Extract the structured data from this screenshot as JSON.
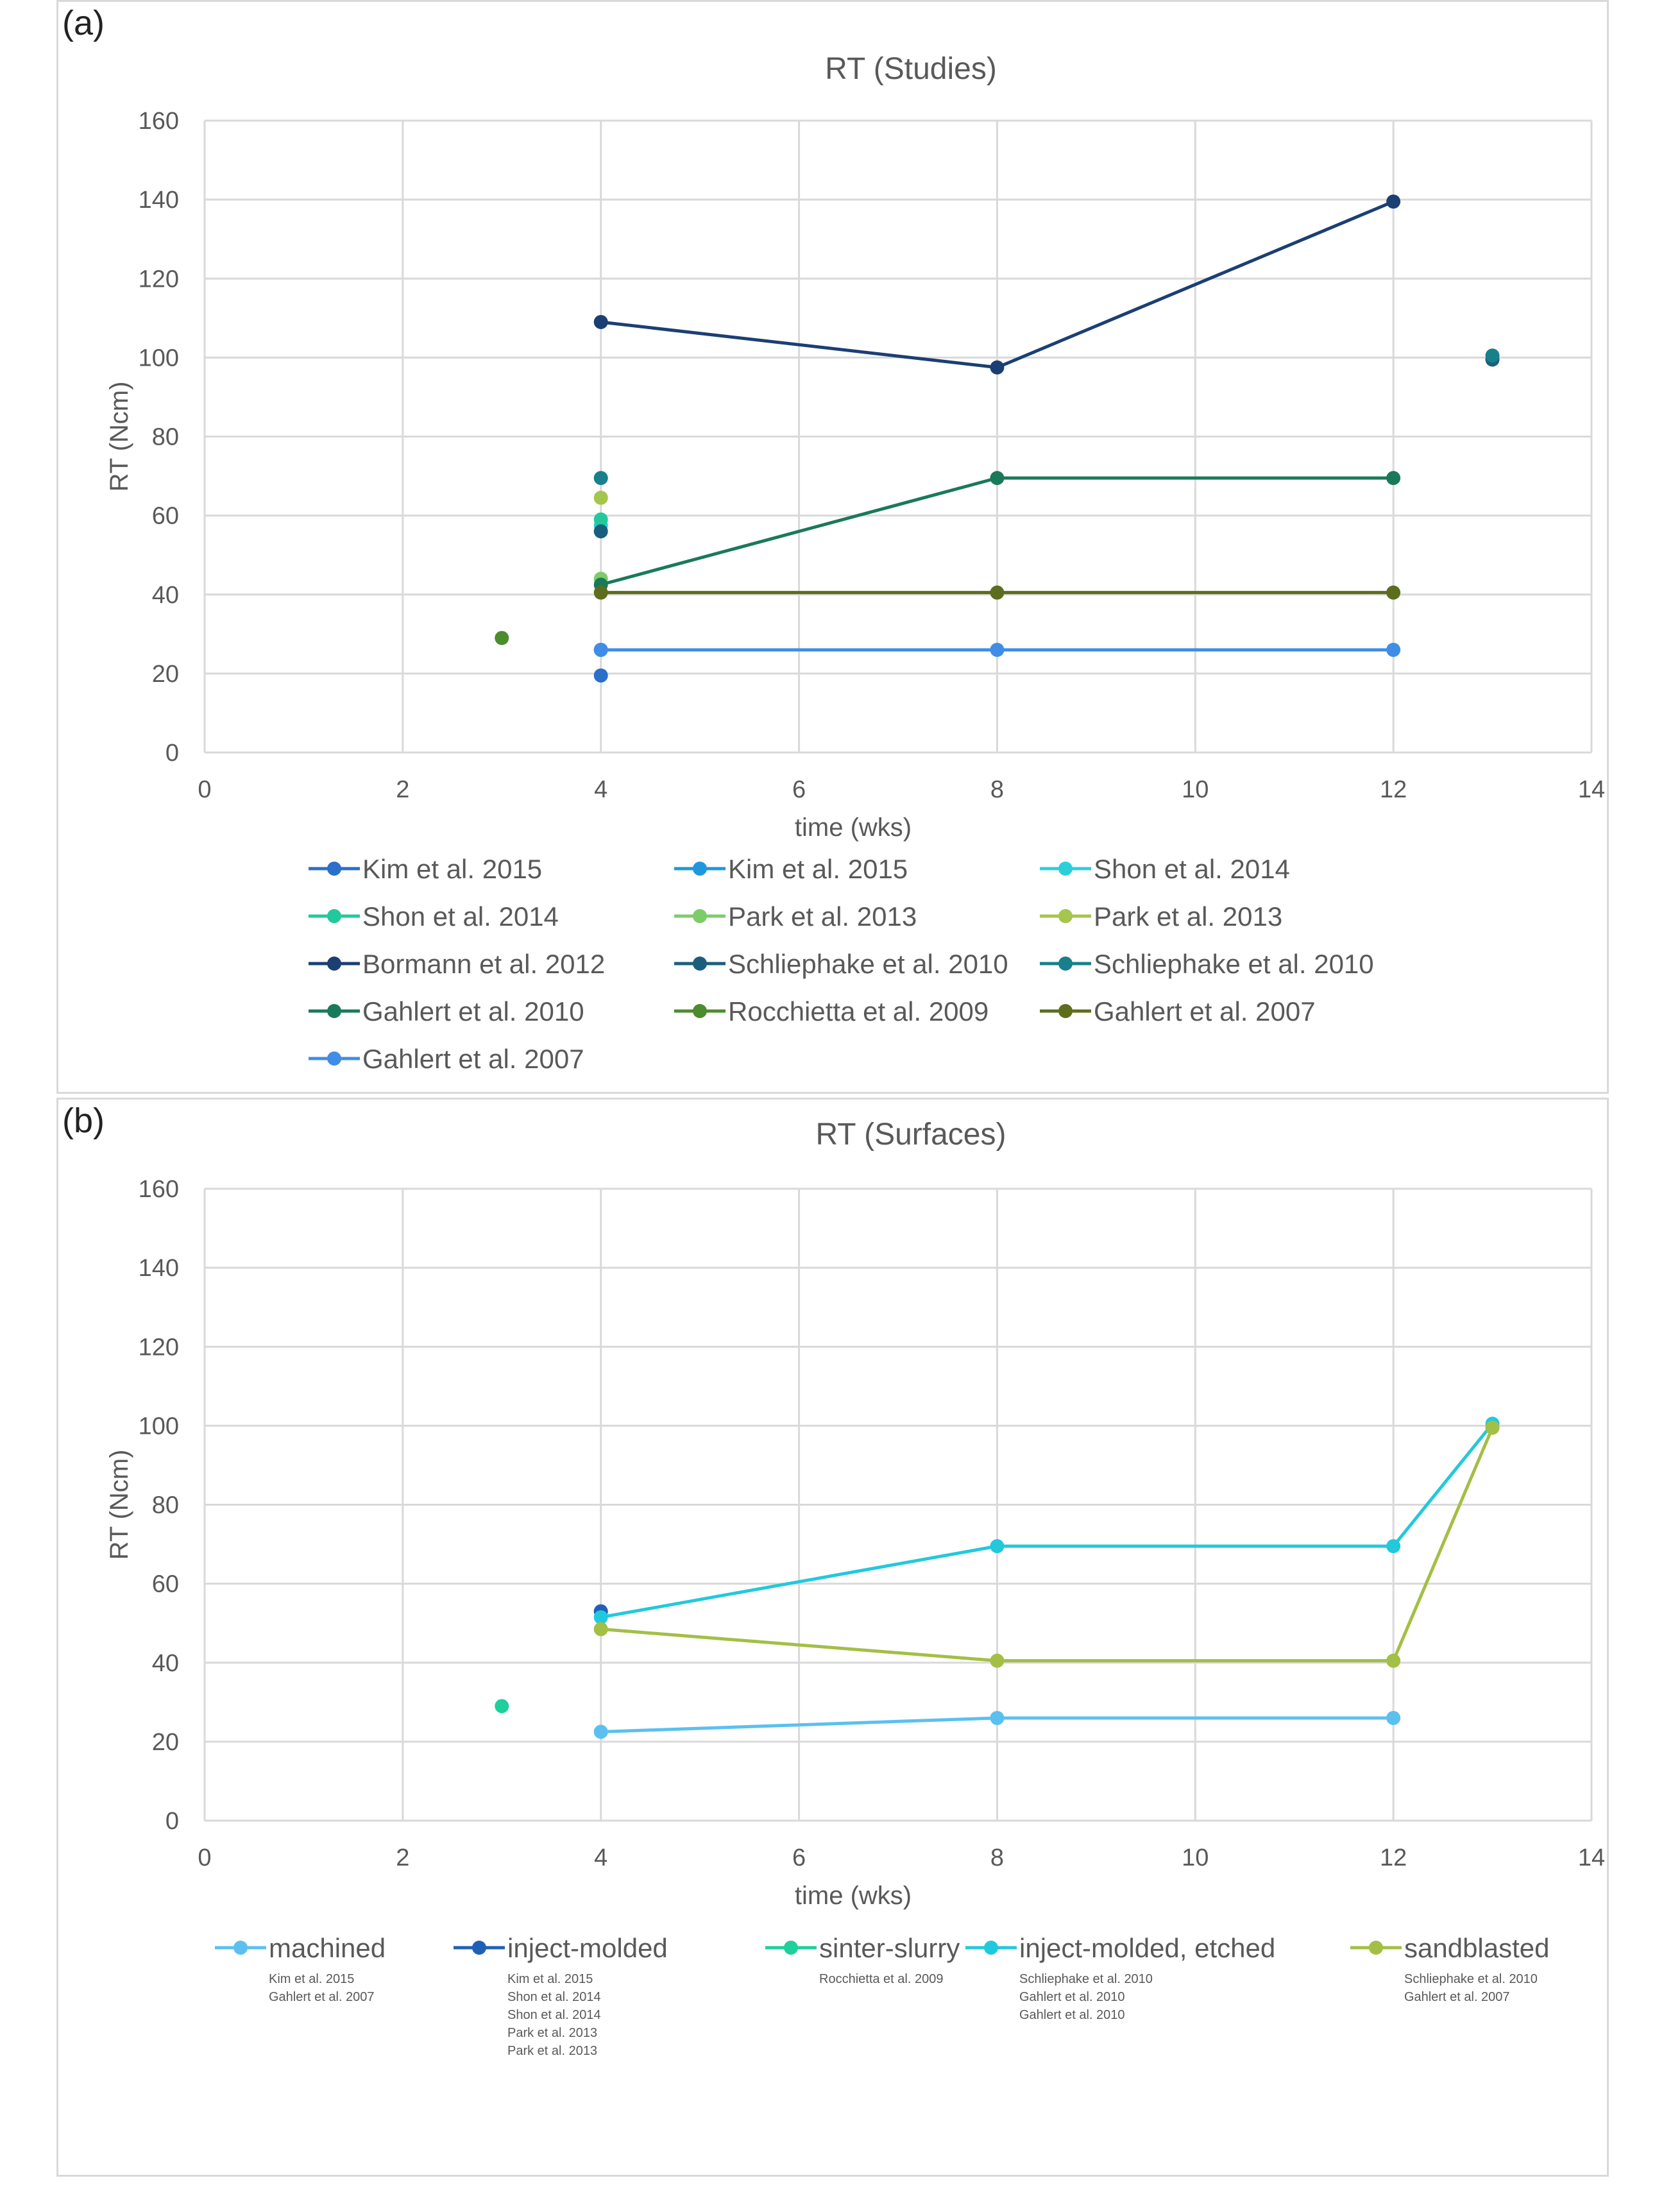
{
  "chart_data": [
    {
      "panel_label": "(a)",
      "type": "line",
      "title": "RT (Studies)",
      "xlabel": "time (wks)",
      "ylabel": "RT (Ncm)",
      "xlim": [
        0,
        14
      ],
      "ylim": [
        0,
        160
      ],
      "xticks": [
        "0",
        "2",
        "4",
        "6",
        "8",
        "10",
        "12",
        "14"
      ],
      "yticks": [
        "0",
        "20",
        "40",
        "60",
        "80",
        "100",
        "120",
        "140",
        "160"
      ],
      "grid": true,
      "legend_position": "bottom",
      "series": [
        {
          "name": "Kim et al. 2015",
          "color": "#2a6fc9",
          "points": [
            [
              4,
              19.5
            ]
          ]
        },
        {
          "name": "Kim et al. 2015",
          "color": "#1f97df",
          "points": [
            [
              4,
              26
            ]
          ]
        },
        {
          "name": "Shon et al. 2014",
          "color": "#2ccfd9",
          "points": [
            [
              4,
              57.5
            ]
          ]
        },
        {
          "name": "Shon et al. 2014",
          "color": "#22c99c",
          "points": [
            [
              4,
              59
            ]
          ]
        },
        {
          "name": "Park et al. 2013",
          "color": "#7dcc6a",
          "points": [
            [
              4,
              44
            ]
          ]
        },
        {
          "name": "Park et al. 2013",
          "color": "#a5c64d",
          "points": [
            [
              4,
              64.5
            ]
          ]
        },
        {
          "name": "Bormann et al. 2012",
          "color": "#1b3f73",
          "points": [
            [
              4,
              109
            ],
            [
              8,
              97.5
            ],
            [
              12,
              139.5
            ]
          ]
        },
        {
          "name": "Schliephake et al. 2010",
          "color": "#1a5e7e",
          "points": [
            [
              4,
              56
            ],
            [
              13,
              99.5
            ]
          ]
        },
        {
          "name": "Schliephake et al. 2010",
          "color": "#17808a",
          "points": [
            [
              4,
              69.5
            ],
            [
              13,
              100.5
            ]
          ]
        },
        {
          "name": "Gahlert et al. 2010",
          "color": "#197a5a",
          "points": [
            [
              4,
              42.5
            ],
            [
              8,
              69.5
            ],
            [
              12,
              69.5
            ]
          ]
        },
        {
          "name": "Rocchietta et al. 2009",
          "color": "#4b8c2c",
          "points": [
            [
              3,
              29
            ]
          ]
        },
        {
          "name": "Gahlert et al. 2007",
          "color": "#5d6d1e",
          "points": [
            [
              4,
              40.5
            ],
            [
              8,
              40.5
            ],
            [
              12,
              40.5
            ]
          ]
        },
        {
          "name": "Gahlert et al. 2007",
          "color": "#3f8de6",
          "points": [
            [
              4,
              26
            ],
            [
              8,
              26
            ],
            [
              12,
              26
            ]
          ]
        }
      ]
    },
    {
      "panel_label": "(b)",
      "type": "line",
      "title": "RT (Surfaces)",
      "xlabel": "time (wks)",
      "ylabel": "RT (Ncm)",
      "xlim": [
        0,
        14
      ],
      "ylim": [
        0,
        160
      ],
      "xticks": [
        "0",
        "2",
        "4",
        "6",
        "8",
        "10",
        "12",
        "14"
      ],
      "yticks": [
        "0",
        "20",
        "40",
        "60",
        "80",
        "100",
        "120",
        "140",
        "160"
      ],
      "grid": true,
      "legend_position": "bottom",
      "series": [
        {
          "name": "machined",
          "color": "#5bc0f0",
          "points": [
            [
              4,
              22.5
            ],
            [
              8,
              26
            ],
            [
              12,
              26
            ]
          ],
          "studies": [
            "Kim et al. 2015",
            "Gahlert et al. 2007"
          ]
        },
        {
          "name": "inject-molded",
          "color": "#1f5fb8",
          "points": [
            [
              4,
              53
            ]
          ],
          "studies": [
            "Kim et al. 2015",
            "Shon et al. 2014",
            "Shon et al. 2014",
            "Park et al. 2013",
            "Park et al. 2013"
          ]
        },
        {
          "name": "sinter-slurry",
          "color": "#1fcf9c",
          "points": [
            [
              3,
              29
            ]
          ],
          "studies": [
            "Rocchietta et al. 2009"
          ]
        },
        {
          "name": "inject-molded, etched",
          "color": "#22c9dc",
          "points": [
            [
              4,
              51.5
            ],
            [
              8,
              69.5
            ],
            [
              12,
              69.5
            ],
            [
              13,
              100.5
            ]
          ],
          "studies": [
            "Schliephake et al. 2010",
            "Gahlert et al. 2010",
            "Gahlert et al. 2010"
          ]
        },
        {
          "name": "sandblasted",
          "color": "#a3bf45",
          "points": [
            [
              4,
              48.5
            ],
            [
              8,
              40.5
            ],
            [
              12,
              40.5
            ],
            [
              13,
              99.5
            ]
          ],
          "studies": [
            "Schliephake et al. 2010",
            "Gahlert et al. 2007"
          ]
        }
      ]
    }
  ]
}
